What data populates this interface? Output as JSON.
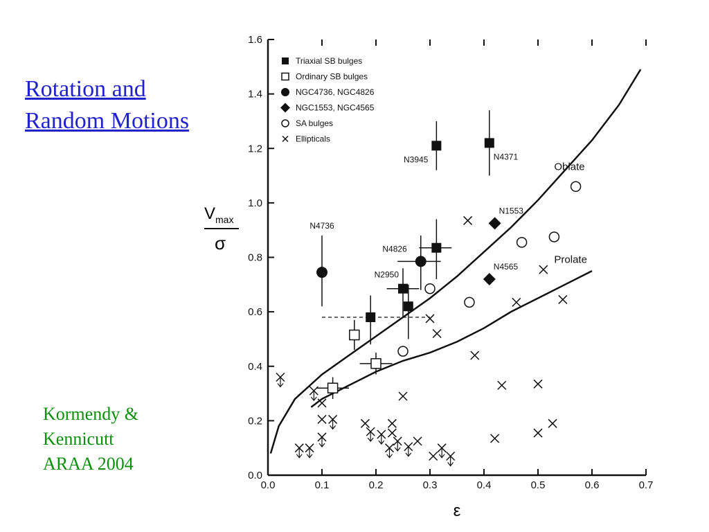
{
  "slide": {
    "title_lines": [
      "Rotation and",
      "Random Motions"
    ],
    "credit_lines": [
      "Kormendy &",
      "Kennicutt",
      "ARAA 2004"
    ],
    "title_color": "#2222cc",
    "credit_color": "#0a8f0a"
  },
  "chart_data": {
    "type": "scatter",
    "xlabel": "ε",
    "ylabel": {
      "main": "V",
      "sub": "max",
      "denom": "σ"
    },
    "xlim": [
      0,
      0.7
    ],
    "ylim": [
      0,
      1.6
    ],
    "xticks": [
      "0.0",
      "0.1",
      "0.2",
      "0.3",
      "0.4",
      "0.5",
      "0.6",
      "0.7"
    ],
    "yticks": [
      "0.0",
      "0.2",
      "0.4",
      "0.6",
      "0.8",
      "1.0",
      "1.2",
      "1.4",
      "1.6"
    ],
    "grid": false,
    "legend_position": "top-left",
    "legend": [
      {
        "label": "Triaxial SB bulges",
        "marker": "filled-square"
      },
      {
        "label": "Ordinary SB bulges",
        "marker": "open-square"
      },
      {
        "label": "NGC4736, NGC4826",
        "marker": "filled-circle"
      },
      {
        "label": "NGC1553, NGC4565",
        "marker": "filled-diamond"
      },
      {
        "label": "SA bulges",
        "marker": "open-circle"
      },
      {
        "label": "Ellipticals",
        "marker": "cross"
      }
    ],
    "series": [
      {
        "name": "Triaxial SB bulges",
        "marker": "filled-square",
        "points": [
          {
            "x": 0.312,
            "y": 1.21,
            "ylo": 1.12,
            "yhi": 1.3,
            "label": "N3945"
          },
          {
            "x": 0.41,
            "y": 1.22,
            "ylo": 1.1,
            "yhi": 1.34,
            "label": "N4371"
          },
          {
            "x": 0.312,
            "y": 0.835,
            "ylo": 0.72,
            "yhi": 0.94,
            "xlo": 0.28,
            "xhi": 0.34
          },
          {
            "x": 0.25,
            "y": 0.685,
            "ylo": 0.58,
            "yhi": 0.76,
            "xlo": 0.22,
            "xhi": 0.28,
            "label": "N2950"
          },
          {
            "x": 0.26,
            "y": 0.62,
            "ylo": 0.5,
            "yhi": 0.7
          },
          {
            "x": 0.19,
            "y": 0.58,
            "ylo": 0.48,
            "yhi": 0.66
          }
        ]
      },
      {
        "name": "Ordinary SB bulges",
        "marker": "open-square",
        "points": [
          {
            "x": 0.16,
            "y": 0.515,
            "ylo": 0.46,
            "yhi": 0.57
          },
          {
            "x": 0.2,
            "y": 0.41,
            "ylo": 0.37,
            "yhi": 0.45,
            "xlo": 0.17,
            "xhi": 0.23
          },
          {
            "x": 0.12,
            "y": 0.32,
            "ylo": 0.28,
            "yhi": 0.36,
            "xlo": 0.09,
            "xhi": 0.15
          }
        ]
      },
      {
        "name": "NGC4736, NGC4826",
        "marker": "filled-circle",
        "points": [
          {
            "x": 0.1,
            "y": 0.745,
            "ylo": 0.62,
            "yhi": 0.88,
            "label": "N4736"
          },
          {
            "x": 0.283,
            "y": 0.785,
            "ylo": 0.68,
            "yhi": 0.88,
            "xlo": 0.24,
            "xhi": 0.32,
            "label": "N4826"
          }
        ]
      },
      {
        "name": "NGC1553, NGC4565",
        "marker": "filled-diamond",
        "points": [
          {
            "x": 0.42,
            "y": 0.925,
            "label": "N1553"
          },
          {
            "x": 0.41,
            "y": 0.72,
            "label": "N4565"
          }
        ]
      },
      {
        "name": "SA bulges",
        "marker": "open-circle",
        "points": [
          {
            "x": 0.57,
            "y": 1.06
          },
          {
            "x": 0.47,
            "y": 0.855
          },
          {
            "x": 0.53,
            "y": 0.875
          },
          {
            "x": 0.3,
            "y": 0.685
          },
          {
            "x": 0.373,
            "y": 0.635
          },
          {
            "x": 0.25,
            "y": 0.455
          }
        ]
      },
      {
        "name": "Ellipticals",
        "marker": "cross",
        "points": [
          {
            "x": 0.023,
            "y": 0.36,
            "upper_limit": true
          },
          {
            "x": 0.085,
            "y": 0.31,
            "upper_limit": true
          },
          {
            "x": 0.1,
            "y": 0.265
          },
          {
            "x": 0.1,
            "y": 0.205
          },
          {
            "x": 0.12,
            "y": 0.205,
            "upper_limit": true
          },
          {
            "x": 0.1,
            "y": 0.14,
            "upper_limit": true
          },
          {
            "x": 0.058,
            "y": 0.1,
            "upper_limit": true
          },
          {
            "x": 0.077,
            "y": 0.1,
            "upper_limit": true
          },
          {
            "x": 0.25,
            "y": 0.29
          },
          {
            "x": 0.18,
            "y": 0.19
          },
          {
            "x": 0.19,
            "y": 0.16,
            "upper_limit": true
          },
          {
            "x": 0.21,
            "y": 0.15,
            "upper_limit": true
          },
          {
            "x": 0.23,
            "y": 0.19
          },
          {
            "x": 0.23,
            "y": 0.155
          },
          {
            "x": 0.225,
            "y": 0.1,
            "upper_limit": true
          },
          {
            "x": 0.24,
            "y": 0.125,
            "upper_limit": true
          },
          {
            "x": 0.26,
            "y": 0.105,
            "upper_limit": true
          },
          {
            "x": 0.277,
            "y": 0.125
          },
          {
            "x": 0.306,
            "y": 0.07
          },
          {
            "x": 0.322,
            "y": 0.1,
            "upper_limit": true
          },
          {
            "x": 0.338,
            "y": 0.07,
            "upper_limit": true
          },
          {
            "x": 0.3,
            "y": 0.575
          },
          {
            "x": 0.313,
            "y": 0.52
          },
          {
            "x": 0.37,
            "y": 0.935
          },
          {
            "x": 0.383,
            "y": 0.44
          },
          {
            "x": 0.433,
            "y": 0.33
          },
          {
            "x": 0.46,
            "y": 0.635
          },
          {
            "x": 0.51,
            "y": 0.755
          },
          {
            "x": 0.546,
            "y": 0.645
          },
          {
            "x": 0.5,
            "y": 0.335
          },
          {
            "x": 0.42,
            "y": 0.135
          },
          {
            "x": 0.5,
            "y": 0.155
          },
          {
            "x": 0.527,
            "y": 0.19
          }
        ]
      }
    ],
    "curves": [
      {
        "name": "Oblate",
        "points": [
          [
            0.005,
            0.08
          ],
          [
            0.02,
            0.18
          ],
          [
            0.05,
            0.28
          ],
          [
            0.1,
            0.37
          ],
          [
            0.15,
            0.44
          ],
          [
            0.2,
            0.51
          ],
          [
            0.25,
            0.58
          ],
          [
            0.3,
            0.65
          ],
          [
            0.35,
            0.73
          ],
          [
            0.4,
            0.82
          ],
          [
            0.45,
            0.91
          ],
          [
            0.5,
            1.01
          ],
          [
            0.55,
            1.12
          ],
          [
            0.6,
            1.23
          ],
          [
            0.65,
            1.36
          ],
          [
            0.69,
            1.49
          ]
        ],
        "label_at": [
          0.53,
          1.12
        ]
      },
      {
        "name": "Prolate",
        "points": [
          [
            0.08,
            0.25
          ],
          [
            0.1,
            0.28
          ],
          [
            0.15,
            0.33
          ],
          [
            0.2,
            0.38
          ],
          [
            0.25,
            0.42
          ],
          [
            0.3,
            0.45
          ],
          [
            0.35,
            0.49
          ],
          [
            0.4,
            0.54
          ],
          [
            0.45,
            0.6
          ],
          [
            0.5,
            0.65
          ],
          [
            0.55,
            0.7
          ],
          [
            0.6,
            0.75
          ]
        ],
        "label_at": [
          0.53,
          0.78
        ]
      }
    ],
    "dashed_line": {
      "y": 0.58,
      "x": [
        0.1,
        0.3
      ]
    }
  }
}
